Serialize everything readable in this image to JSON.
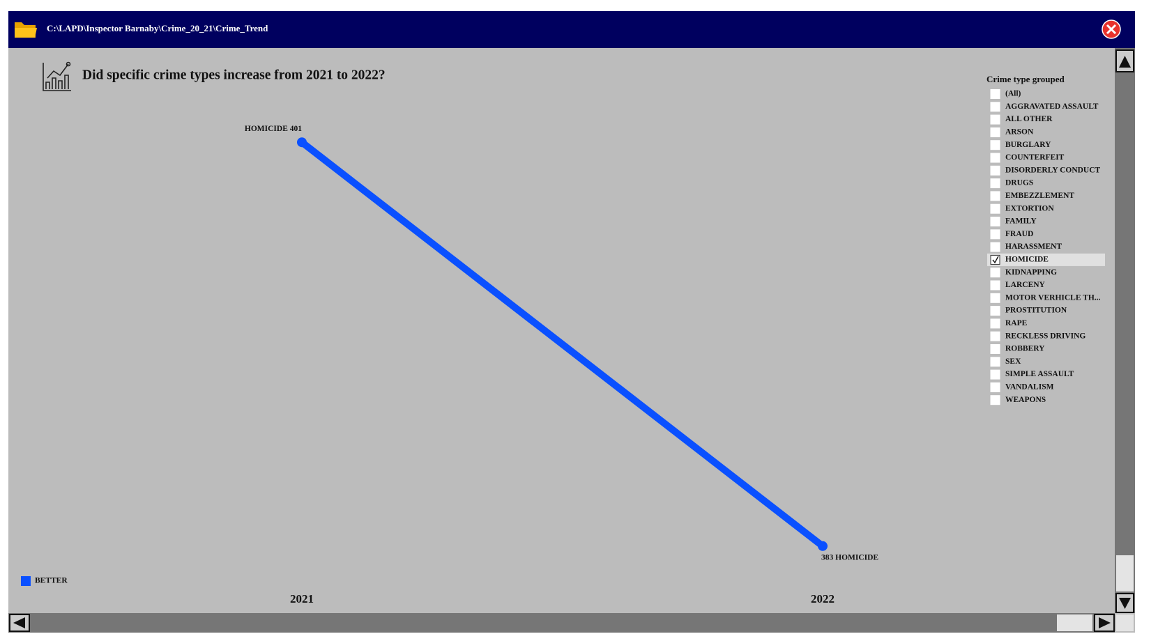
{
  "window": {
    "path": "C:\\LAPD\\Inspector Barnaby\\Crime_20_21\\Crime_Trend"
  },
  "chart_data": {
    "type": "slope",
    "title": "Did specific crime types increase from 2021 to 2022?",
    "categories": [
      "2021",
      "2022"
    ],
    "series": [
      {
        "name": "BETTER",
        "color": "#0a50ff",
        "values": [
          401,
          383
        ],
        "value_labels": [
          "HOMICIDE 401",
          "383 HOMICIDE"
        ]
      }
    ],
    "ylim": [
      382,
      402
    ]
  },
  "filter": {
    "title": "Crime type grouped",
    "items": [
      {
        "label": "(All)",
        "checked": false
      },
      {
        "label": "AGGRAVATED ASSAULT",
        "checked": false
      },
      {
        "label": "ALL OTHER",
        "checked": false
      },
      {
        "label": "ARSON",
        "checked": false
      },
      {
        "label": "BURGLARY",
        "checked": false
      },
      {
        "label": "COUNTERFEIT",
        "checked": false
      },
      {
        "label": "DISORDERLY CONDUCT",
        "checked": false
      },
      {
        "label": "DRUGS",
        "checked": false
      },
      {
        "label": "EMBEZZLEMENT",
        "checked": false
      },
      {
        "label": "EXTORTION",
        "checked": false
      },
      {
        "label": "FAMILY",
        "checked": false
      },
      {
        "label": "FRAUD",
        "checked": false
      },
      {
        "label": "HARASSMENT",
        "checked": false
      },
      {
        "label": "HOMICIDE",
        "checked": true
      },
      {
        "label": "KIDNAPPING",
        "checked": false
      },
      {
        "label": "LARCENY",
        "checked": false
      },
      {
        "label": "MOTOR VERHICLE TH...",
        "checked": false
      },
      {
        "label": "PROSTITUTION",
        "checked": false
      },
      {
        "label": "RAPE",
        "checked": false
      },
      {
        "label": "RECKLESS DRIVING",
        "checked": false
      },
      {
        "label": "ROBBERY",
        "checked": false
      },
      {
        "label": "SEX",
        "checked": false
      },
      {
        "label": "SIMPLE ASSAULT",
        "checked": false
      },
      {
        "label": "VANDALISM",
        "checked": false
      },
      {
        "label": "WEAPONS",
        "checked": false
      }
    ]
  }
}
